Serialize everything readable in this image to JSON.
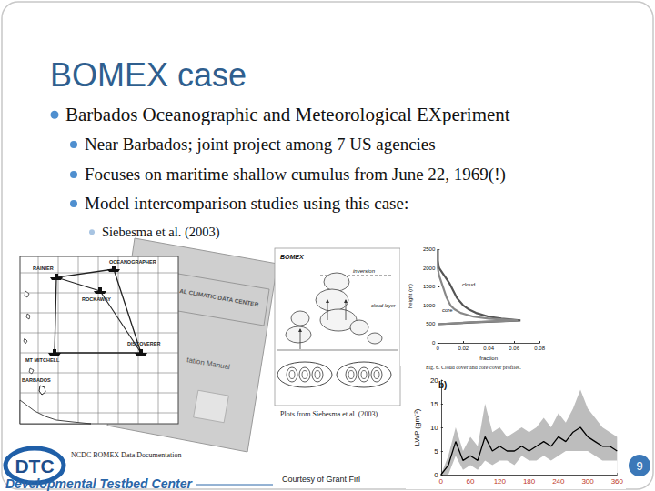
{
  "slide": {
    "title": "BOMEX case",
    "bullets": [
      {
        "level": 1,
        "text": "Barbados Oceanographic and Meteorological EXperiment"
      },
      {
        "level": 2,
        "text": "Near Barbados; joint project among 7 US agencies"
      },
      {
        "level": 2,
        "text": "Focuses on maritime shallow cumulus from June 22, 1969(!)"
      },
      {
        "level": 2,
        "text": "Model intercomparison studies using this case:"
      },
      {
        "level": 3,
        "text": "Siebesma et al. (2003)"
      }
    ],
    "footer": {
      "logo": "DTC",
      "organization": "Developmental Testbed Center",
      "credit": "Courtesy of Grant Firl",
      "page": 9
    }
  },
  "figures": {
    "map": {
      "labels": [
        "OCEANOGRAPHER",
        "RAINIER",
        "ROCKAWAY",
        "MT MITCHELL",
        "DISCOVERER",
        "BARBADOS"
      ],
      "caption": "NCDC BOMEX Data Documentation"
    },
    "manual_cover": {
      "texts": [
        "AL CLIMATIC DATA CENTER",
        "tation Manual"
      ]
    },
    "schematic": {
      "title": "BOMEX",
      "labels": [
        "inversion",
        "cloud layer"
      ],
      "caption": "Plots from Siebesma et al. (2003)"
    }
  },
  "chart_data": [
    {
      "type": "line",
      "caption": "Fig. 6. Cloud cover and core cover profiles.",
      "x_label": "fraction",
      "y_label": "height (m)",
      "y": [
        500,
        550,
        600,
        650,
        700,
        800,
        900,
        1000,
        1200,
        1400,
        1600,
        1800,
        2000,
        2200,
        2500
      ],
      "series": [
        {
          "name": "cloud",
          "color": "#555555",
          "values": [
            0,
            0.03,
            0.065,
            0.05,
            0.04,
            0.03,
            0.024,
            0.02,
            0.015,
            0.012,
            0.009,
            0.005,
            0.001,
            0,
            0
          ]
        },
        {
          "name": "core",
          "color": "#888888",
          "values": [
            0,
            0.025,
            0.063,
            0.04,
            0.028,
            0.018,
            0.013,
            0.01,
            0.007,
            0.005,
            0.003,
            0.001,
            0,
            0,
            0
          ]
        }
      ],
      "xlim": [
        0,
        0.08
      ],
      "xticks": [
        0,
        0.02,
        0.04,
        0.06,
        0.08
      ],
      "ylim": [
        0,
        2500
      ],
      "yticks": [
        0,
        500,
        1000,
        1500,
        2000,
        2500
      ],
      "grid": false
    },
    {
      "type": "line",
      "panel_label": "b)",
      "y_label": "LWP (gm⁻²)",
      "x": [
        0,
        15,
        30,
        45,
        60,
        75,
        90,
        105,
        120,
        135,
        150,
        165,
        180,
        195,
        210,
        225,
        240,
        255,
        270,
        285,
        300,
        315,
        330,
        345,
        360
      ],
      "values": [
        0,
        2,
        7,
        3,
        4,
        3,
        8,
        5,
        6,
        5,
        5,
        6,
        5,
        6,
        7,
        6,
        8,
        7,
        9,
        10,
        8,
        7,
        6,
        6,
        5
      ],
      "spread_upper": [
        0,
        4,
        10,
        5,
        8,
        6,
        15,
        9,
        10,
        8,
        9,
        10,
        9,
        10,
        12,
        10,
        13,
        11,
        14,
        18,
        14,
        12,
        10,
        9,
        8
      ],
      "spread_lower": [
        0,
        0,
        4,
        1,
        2,
        1,
        3,
        2,
        3,
        3,
        2,
        4,
        3,
        3,
        4,
        3,
        4,
        5,
        5,
        5,
        5,
        4,
        3,
        3,
        3
      ],
      "color": "#000000",
      "spread_color": "#bdbdbd",
      "xlim": [
        0,
        360
      ],
      "xticks": [
        0,
        60,
        120,
        180,
        240,
        300,
        360
      ],
      "ylim": [
        0,
        20
      ],
      "yticks": [
        0,
        5,
        10,
        15,
        20
      ],
      "grid": false
    }
  ]
}
